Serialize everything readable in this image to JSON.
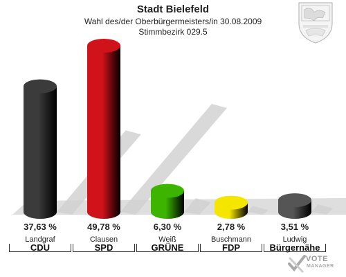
{
  "header": {
    "title": "Stadt Bielefeld",
    "subtitle": "Wahl des/der Oberbürgermeisters/in 30.08.2009",
    "district": "Stimmbezirk 029.5"
  },
  "chart_data": {
    "type": "bar",
    "categories": [
      "CDU",
      "SPD",
      "GRÜNE",
      "FDP",
      "Bürgernähe"
    ],
    "candidates": [
      "Landgraf",
      "Clausen",
      "Weiß",
      "Buschmann",
      "Ludwig"
    ],
    "values": [
      37.63,
      49.78,
      6.3,
      2.78,
      3.51
    ],
    "value_labels": [
      "37,63 %",
      "49,78 %",
      "6,30 %",
      "2,78 %",
      "3,51 %"
    ],
    "colors": [
      "#3b3b3b",
      "#d0121b",
      "#3cb400",
      "#f5e600",
      "#555555"
    ],
    "ylim": [
      0,
      55
    ]
  },
  "logo": {
    "line1": "VOTE",
    "line2": "MANAGER"
  }
}
